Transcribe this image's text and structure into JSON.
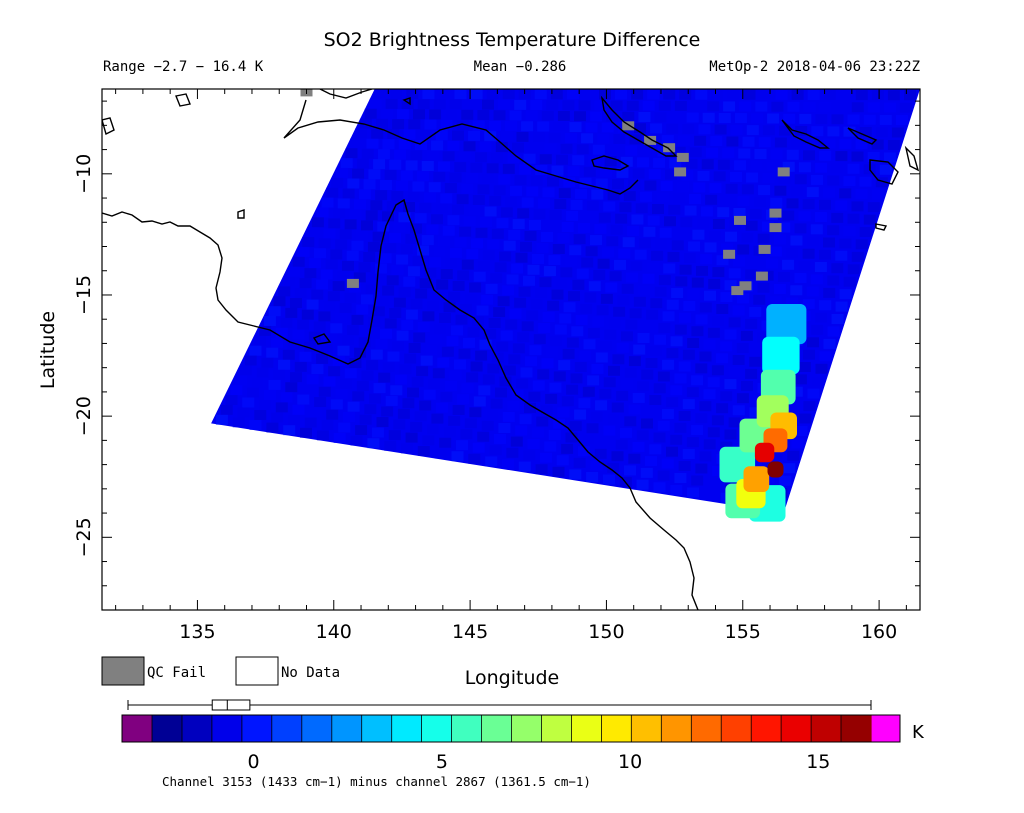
{
  "header": {
    "title": "SO2 Brightness Temperature Difference",
    "range": "Range −2.7 − 16.4 K",
    "mean": "Mean −0.286",
    "platform": "MetOp-2 2018-04-06 23:22Z"
  },
  "legend": {
    "qc_fail": "QC Fail",
    "no_data": "No Data",
    "qc_color": "#808080"
  },
  "colorbar": {
    "unit": "K",
    "range": [
      -2.7,
      16.4
    ],
    "ticks": [
      "0",
      "5",
      "10",
      "15"
    ],
    "tick_values": [
      0,
      5,
      10,
      15
    ],
    "under_color": "#800080",
    "over_color": "#ff00ff",
    "caption": "Channel 3153 (1433 cm−1) minus channel 2867 (1361.5 cm−1)",
    "boxplot": {
      "min": -2.7,
      "q1": -1.1,
      "median": -0.7,
      "q3": -0.1,
      "max": 16.4
    }
  },
  "chart_data": {
    "type": "heatmap",
    "title": "SO2 Brightness Temperature Difference",
    "xlabel": "Longitude",
    "ylabel": "Latitude",
    "xlim": [
      131.5,
      161.5
    ],
    "ylim": [
      -28,
      -6.5
    ],
    "xticks": [
      135,
      140,
      145,
      150,
      155,
      160
    ],
    "yticks": [
      -10,
      -15,
      -20,
      -25
    ],
    "value_range": [
      -2.7,
      16.4
    ],
    "units": "K",
    "mean": -0.286,
    "swath_corners": [
      [
        141.5,
        -6.5
      ],
      [
        161.5,
        -6.5
      ],
      [
        156.5,
        -24.0
      ],
      [
        135.5,
        -20.3
      ]
    ],
    "anomaly_points": [
      {
        "lon": 155.8,
        "lat": -21.5,
        "value": 14.5
      },
      {
        "lon": 156.2,
        "lat": -22.2,
        "value": 16.4
      },
      {
        "lon": 156.2,
        "lat": -21.0,
        "value": 12.0
      },
      {
        "lon": 156.5,
        "lat": -20.4,
        "value": 10.5
      },
      {
        "lon": 155.5,
        "lat": -22.6,
        "value": 11.0
      },
      {
        "lon": 155.3,
        "lat": -23.2,
        "value": 9.0
      },
      {
        "lon": 156.1,
        "lat": -19.8,
        "value": 7.5
      },
      {
        "lon": 156.3,
        "lat": -18.8,
        "value": 6.0
      },
      {
        "lon": 155.5,
        "lat": -20.8,
        "value": 6.5
      },
      {
        "lon": 154.8,
        "lat": -22.0,
        "value": 5.5
      },
      {
        "lon": 156.4,
        "lat": -17.5,
        "value": 4.5
      },
      {
        "lon": 155.0,
        "lat": -23.5,
        "value": 6.0
      },
      {
        "lon": 155.9,
        "lat": -23.6,
        "value": 5.0
      },
      {
        "lon": 156.6,
        "lat": -16.2,
        "value": 3.0
      }
    ],
    "qc_fail_points": [
      {
        "lon": 140.7,
        "lat": -14.5
      },
      {
        "lon": 150.8,
        "lat": -8.0
      },
      {
        "lon": 151.6,
        "lat": -8.6
      },
      {
        "lon": 152.3,
        "lat": -8.9
      },
      {
        "lon": 152.8,
        "lat": -9.3
      },
      {
        "lon": 152.7,
        "lat": -9.9
      },
      {
        "lon": 154.9,
        "lat": -11.9
      },
      {
        "lon": 156.2,
        "lat": -11.6
      },
      {
        "lon": 156.2,
        "lat": -12.2
      },
      {
        "lon": 156.5,
        "lat": -9.9
      },
      {
        "lon": 154.5,
        "lat": -13.3
      },
      {
        "lon": 155.8,
        "lat": -13.1
      },
      {
        "lon": 155.7,
        "lat": -14.2
      },
      {
        "lon": 154.8,
        "lat": -14.8
      },
      {
        "lon": 155.1,
        "lat": -14.6
      },
      {
        "lon": 139.0,
        "lat": -6.6
      }
    ]
  }
}
